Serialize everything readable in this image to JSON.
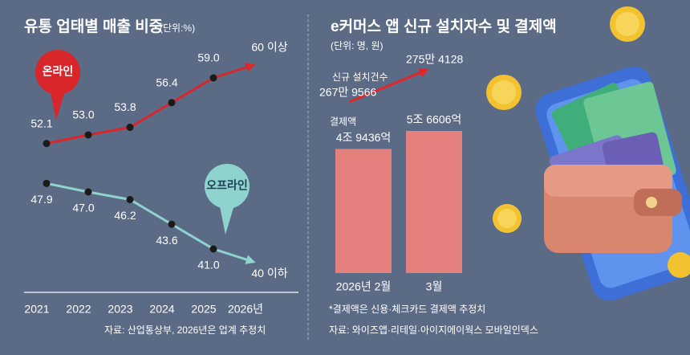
{
  "chart_data": [
    {
      "type": "line",
      "title": "유통 업태별 매출 비중",
      "subtitle": "(단위:%)",
      "categories": [
        "2021",
        "2022",
        "2023",
        "2024",
        "2025",
        "2026년"
      ],
      "series": [
        {
          "name": "온라인",
          "color": "#d9262b",
          "values": [
            52.1,
            53.0,
            53.8,
            56.4,
            59.0,
            null
          ],
          "value_labels": [
            "52.1",
            "53.0",
            "53.8",
            "56.4",
            "59.0",
            null
          ],
          "annotation": "60 이상"
        },
        {
          "name": "오프라인",
          "color": "#8fd3cf",
          "values": [
            47.9,
            47.0,
            46.2,
            43.6,
            41.0,
            null
          ],
          "value_labels": [
            "47.9",
            "47.0",
            "46.2",
            "43.6",
            "41.0",
            null
          ],
          "annotation": "40 이하"
        }
      ],
      "source": "자료: 산업통상부, 2026년은 업계 추정치"
    },
    {
      "type": "bar",
      "title": "e커머스 앱 신규 설치자수 및 결제액",
      "subtitle": "(단위: 명, 원)",
      "categories": [
        "2026년 2월",
        "3월"
      ],
      "series": [
        {
          "name": "결제액",
          "color": "#e37f7c",
          "values": [
            4943600000000,
            5660600000000
          ],
          "value_labels": [
            "4조 9436억",
            "5조 6606억"
          ]
        },
        {
          "name": "신규 설치건수",
          "type": "line",
          "color": "#e0262b",
          "values": [
            2679566,
            2754128
          ],
          "value_labels": [
            "267만 9566",
            "275만 4128"
          ]
        }
      ],
      "note": "*결제액은 신용·체크카드 결제액 추정치",
      "source": "자료: 와이즈앱·리테일·아이지에이웍스 모바일인덱스"
    }
  ]
}
